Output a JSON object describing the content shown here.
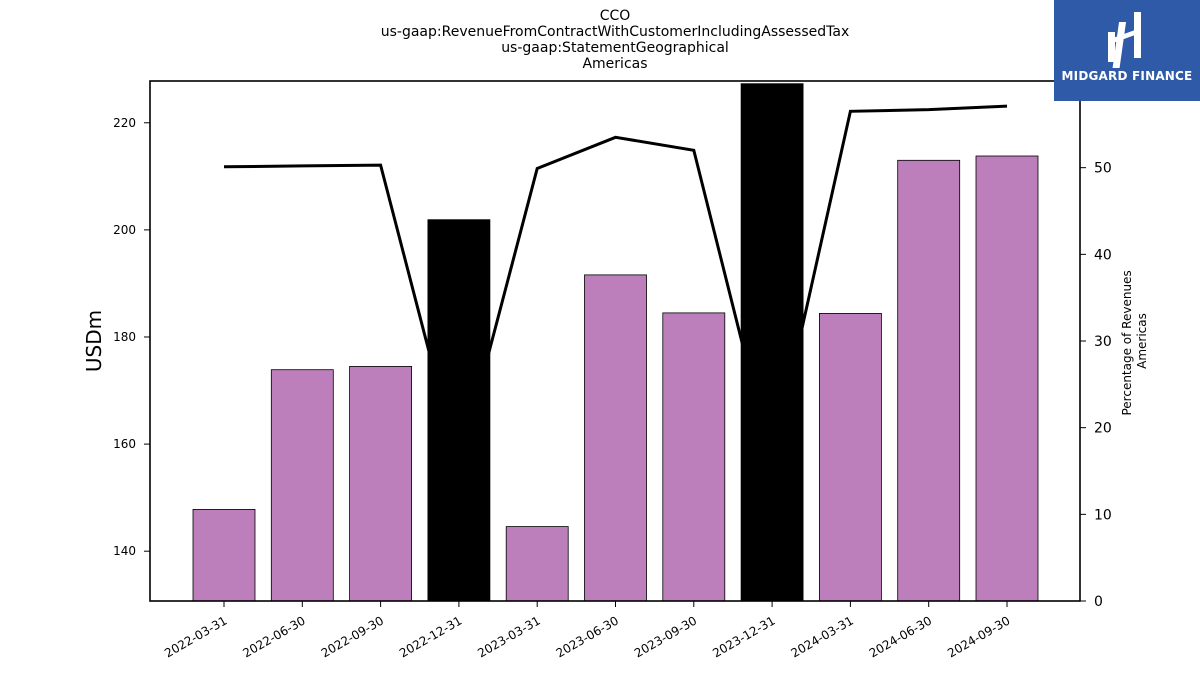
{
  "chart_data": {
    "type": "bar",
    "title_lines": [
      "CCO",
      "us-gaap:RevenueFromContractWithCustomerIncludingAssessedTax",
      "us-gaap:StatementGeographical",
      "Americas"
    ],
    "categories": [
      "2022-03-31",
      "2022-06-30",
      "2022-09-30",
      "2022-12-31",
      "2023-03-31",
      "2023-06-30",
      "2023-09-30",
      "2023-12-31",
      "2024-03-31",
      "2024-06-30",
      "2024-09-30"
    ],
    "values": [
      147.8,
      173.9,
      174.5,
      201.9,
      144.6,
      191.6,
      184.5,
      227.3,
      184.4,
      213.0,
      213.8
    ],
    "bar_colors": [
      "#bc7fbc",
      "#bc7fbc",
      "#bc7fbc",
      "#000000",
      "#bc7fbc",
      "#bc7fbc",
      "#bc7fbc",
      "#000000",
      "#bc7fbc",
      "#bc7fbc",
      "#bc7fbc"
    ],
    "ylabel": "USDm",
    "ylim": [
      130.7,
      227.8
    ],
    "yticks": [
      140,
      160,
      180,
      200,
      220
    ],
    "line": {
      "values": [
        50.1,
        50.2,
        50.3,
        15.5,
        49.9,
        53.5,
        52.0,
        16.0,
        56.5,
        56.7,
        57.1
      ],
      "color": "#000000"
    },
    "y2label_lines": [
      "Percentage of Revenues",
      "Americas"
    ],
    "y2lim": [
      0,
      60
    ],
    "y2ticks": [
      0,
      10,
      20,
      30,
      40,
      50
    ],
    "grid": false
  },
  "logo": {
    "text": "MIDGARD FINANCE",
    "bg_color": "#2f5aa8"
  }
}
